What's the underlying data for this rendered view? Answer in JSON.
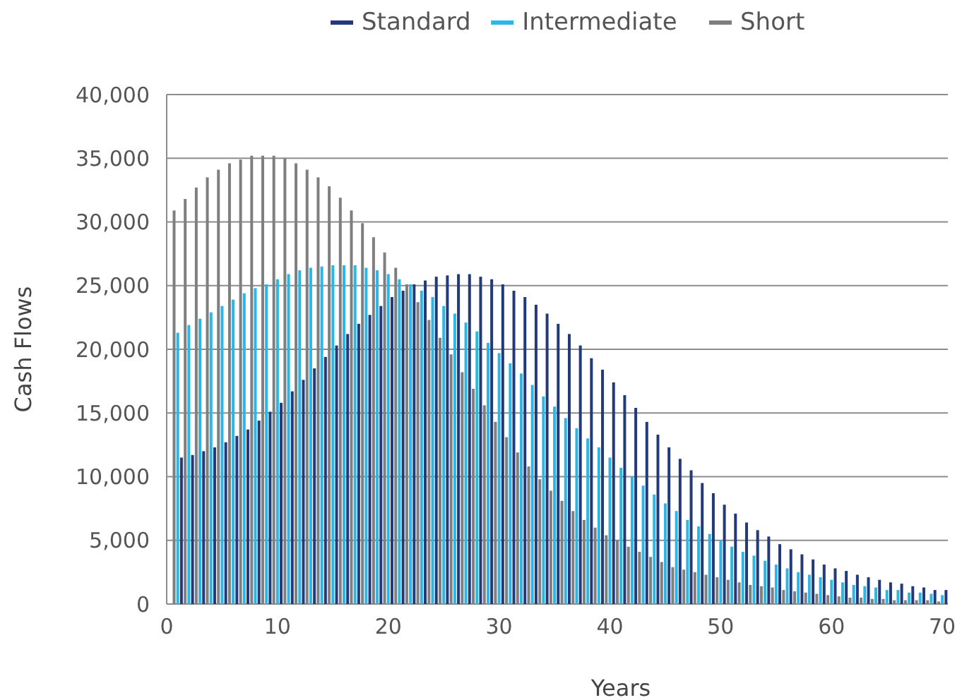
{
  "chart_data": {
    "type": "bar",
    "xlabel": "Years",
    "ylabel": "Cash Flows",
    "x": [
      1,
      2,
      3,
      4,
      5,
      6,
      7,
      8,
      9,
      10,
      11,
      12,
      13,
      14,
      15,
      16,
      17,
      18,
      19,
      20,
      21,
      22,
      23,
      24,
      25,
      26,
      27,
      28,
      29,
      30,
      31,
      32,
      33,
      34,
      35,
      36,
      37,
      38,
      39,
      40,
      41,
      42,
      43,
      44,
      45,
      46,
      47,
      48,
      49,
      50,
      51,
      52,
      53,
      54,
      55,
      56,
      57,
      58,
      59,
      60,
      61,
      62,
      63,
      64,
      65,
      66,
      67,
      68,
      69,
      70
    ],
    "series": [
      {
        "name": "Standard",
        "color": "#233a7a",
        "values": [
          11500,
          11700,
          12000,
          12300,
          12700,
          13200,
          13700,
          14400,
          15100,
          15800,
          16700,
          17600,
          18500,
          19400,
          20300,
          21200,
          22000,
          22700,
          23400,
          24100,
          24600,
          25100,
          25400,
          25700,
          25800,
          25900,
          25900,
          25700,
          25500,
          25100,
          24600,
          24100,
          23500,
          22800,
          22000,
          21200,
          20300,
          19300,
          18400,
          17400,
          16400,
          15400,
          14300,
          13300,
          12300,
          11400,
          10500,
          9500,
          8700,
          7800,
          7100,
          6400,
          5800,
          5300,
          4700,
          4300,
          3900,
          3500,
          3100,
          2800,
          2600,
          2300,
          2100,
          1900,
          1700,
          1600,
          1400,
          1300,
          1100,
          1100
        ]
      },
      {
        "name": "Intermediate",
        "color": "#2bb6e6",
        "values": [
          21300,
          21900,
          22400,
          22900,
          23400,
          23900,
          24400,
          24800,
          25100,
          25500,
          25900,
          26200,
          26400,
          26500,
          26600,
          26600,
          26600,
          26400,
          26200,
          25900,
          25500,
          25100,
          24600,
          24100,
          23400,
          22800,
          22100,
          21400,
          20500,
          19700,
          18900,
          18100,
          17200,
          16300,
          15500,
          14600,
          13800,
          13000,
          12300,
          11500,
          10700,
          10000,
          9300,
          8600,
          7900,
          7300,
          6600,
          6100,
          5500,
          5000,
          4500,
          4100,
          3800,
          3400,
          3100,
          2800,
          2500,
          2300,
          2100,
          1900,
          1700,
          1500,
          1400,
          1300,
          1100,
          1100,
          900,
          900,
          800,
          700
        ]
      },
      {
        "name": "Short",
        "color": "#7f7f7f",
        "values": [
          30900,
          31800,
          32700,
          33500,
          34100,
          34600,
          34900,
          35200,
          35200,
          35200,
          35000,
          34600,
          34100,
          33500,
          32800,
          31900,
          30900,
          29900,
          28800,
          27600,
          26400,
          25100,
          23700,
          22300,
          20900,
          19600,
          18200,
          16900,
          15600,
          14300,
          13100,
          11900,
          10800,
          9800,
          8900,
          8100,
          7300,
          6600,
          6000,
          5400,
          5000,
          4500,
          4100,
          3700,
          3300,
          2900,
          2700,
          2500,
          2300,
          2100,
          1900,
          1700,
          1500,
          1400,
          1300,
          1100,
          1000,
          900,
          800,
          700,
          600,
          500,
          500,
          400,
          400,
          300,
          300,
          300,
          300,
          200
        ]
      }
    ],
    "xlim": [
      0,
      70.5
    ],
    "xticks": [
      0,
      10,
      20,
      30,
      40,
      50,
      60,
      70
    ],
    "ylim": [
      0,
      40000
    ],
    "yticks": [
      {
        "value": 0,
        "label": "0"
      },
      {
        "value": 5000,
        "label": "5,000"
      },
      {
        "value": 10000,
        "label": "10,000"
      },
      {
        "value": 15000,
        "label": "15,000"
      },
      {
        "value": 20000,
        "label": "20,000"
      },
      {
        "value": 25000,
        "label": "25,000"
      },
      {
        "value": 30000,
        "label": "30,000"
      },
      {
        "value": 35000,
        "label": "35,000"
      },
      {
        "value": 40000,
        "label": "40,000"
      }
    ],
    "grid": "y",
    "legend": "top"
  }
}
